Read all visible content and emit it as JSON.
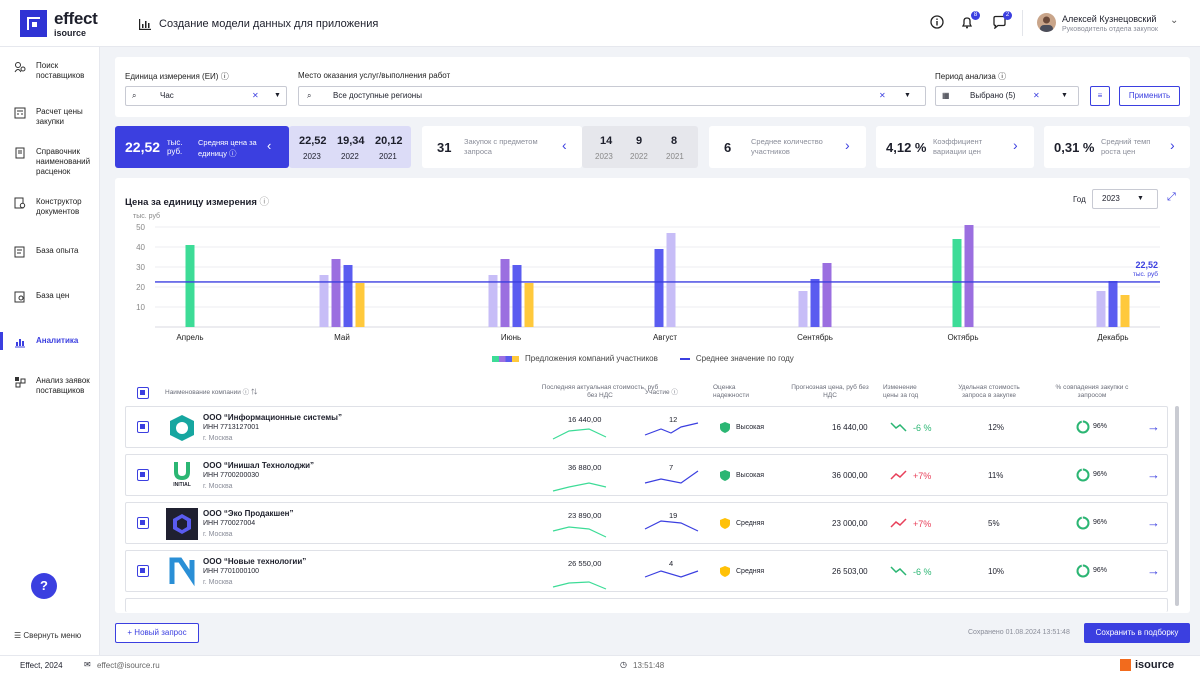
{
  "header": {
    "brand": "effect",
    "brand_sub": "isource",
    "title": "Создание модели данных для приложения",
    "notif_count": "8",
    "msg_count": "2",
    "user_name": "Алексей Кузнецовский",
    "user_role": "Руководитель отдела закупок"
  },
  "sidebar": {
    "items": [
      {
        "label": "Поиск поставщиков",
        "icon": "supplier-search-icon"
      },
      {
        "label": "Расчет цены закупки",
        "icon": "calculator-icon"
      },
      {
        "label": "Справочник наименований расценок",
        "icon": "book-icon"
      },
      {
        "label": "Конструктор документов",
        "icon": "document-builder-icon"
      },
      {
        "label": "База опыта",
        "icon": "experience-base-icon"
      },
      {
        "label": "База цен",
        "icon": "price-base-icon"
      },
      {
        "label": "Аналитика",
        "icon": "analytics-icon",
        "active": true
      },
      {
        "label": "Анализ заявок поставщиков",
        "icon": "applications-icon"
      }
    ],
    "collapse": "Свернуть меню"
  },
  "filters": {
    "unit_label": "Единица измерения (ЕИ)",
    "unit_value": "Час",
    "place_label": "Место оказания услуг/выполнения работ",
    "place_value": "Все доступные регионы",
    "period_label": "Период анализа",
    "period_value": "Выбрано (5)",
    "apply": "Применить"
  },
  "stats": {
    "price_value": "22,52",
    "price_unit": "тыс. руб.",
    "price_label": "Средняя цена за единицу",
    "years": [
      {
        "v": "22,52",
        "y": "2023"
      },
      {
        "v": "19,34",
        "y": "2022"
      },
      {
        "v": "20,12",
        "y": "2021"
      }
    ],
    "purchases_value": "31",
    "purchases_label": "Закупок с предметом запроса",
    "purchases_years": [
      {
        "v": "14",
        "y": "2023"
      },
      {
        "v": "9",
        "y": "2022"
      },
      {
        "v": "8",
        "y": "2021"
      }
    ],
    "participants_value": "6",
    "participants_label": "Среднее количество участников",
    "variation_value": "4,12 %",
    "variation_label": "Коэффициент вариации цен",
    "growth_value": "0,31 %",
    "growth_label": "Средний темп роста цен"
  },
  "chart_panel": {
    "title": "Цена за единицу измерения",
    "year_label": "Год",
    "year_value": "2023",
    "y_unit": "тыс. руб",
    "avg_value": "22,52",
    "avg_unit": "тыс. руб",
    "legend_offers": "Предложения компаний участников",
    "legend_avg": "Среднее значение по году"
  },
  "chart_data": {
    "type": "bar",
    "categories": [
      "Апрель",
      "Май",
      "Июнь",
      "Август",
      "Сентябрь",
      "Октябрь",
      "Декабрь"
    ],
    "y_ticks": [
      "50",
      "40",
      "30",
      "20",
      "10"
    ],
    "ylim": [
      0,
      55
    ],
    "average": 22.52,
    "bar_values": [
      [
        41
      ],
      [
        26,
        34,
        31,
        22
      ],
      [
        26,
        34,
        31,
        22
      ],
      [
        39,
        47
      ],
      [
        18,
        24,
        32
      ],
      [
        44,
        51
      ],
      [
        18,
        23,
        16
      ]
    ],
    "bar_colors": [
      [
        "#3ddc97"
      ],
      [
        "#c7bdf7",
        "#9b6fe0",
        "#5a5cf0",
        "#ffc93c"
      ],
      [
        "#c7bdf7",
        "#9b6fe0",
        "#5a5cf0",
        "#ffc93c"
      ],
      [
        "#5a5cf0",
        "#c7bdf7"
      ],
      [
        "#c7bdf7",
        "#5a5cf0",
        "#9b6fe0"
      ],
      [
        "#3ddc97",
        "#9b6fe0"
      ],
      [
        "#c7bdf7",
        "#5a5cf0",
        "#ffc93c"
      ]
    ]
  },
  "table": {
    "headers": {
      "name": "Наименование компании",
      "last_price": "Последняя актуальная стоимость, руб без НДС",
      "participation": "Участие",
      "reliability": "Оценка надежности",
      "forecast": "Прогнозная цена, руб без НДС",
      "change": "Изменение цены за год",
      "share": "Удельная стоимость запроса в закупке",
      "match": "% совпадения закупки с запросом"
    },
    "rows": [
      {
        "name": "ООО “Информационные системы”",
        "inn": "ИНН 7713127001",
        "city": "г. Москва",
        "last_price": "16 440,00",
        "participation": "12",
        "reliability": "Высокая",
        "rel_color": "#2bb673",
        "forecast": "16 440,00",
        "change": "-6 %",
        "change_color": "#2bb673",
        "share": "12%",
        "match": "96%",
        "logo": "hexagon-logo"
      },
      {
        "name": "ООО “Инишал Технолоджи”",
        "inn": "ИНН 7700200030",
        "city": "г. Москва",
        "last_price": "36 880,00",
        "participation": "7",
        "reliability": "Высокая",
        "rel_color": "#2bb673",
        "forecast": "36 000,00",
        "change": "+7%",
        "change_color": "#e8405a",
        "share": "11%",
        "match": "96%",
        "logo": "initial-logo",
        "logo_text": "INITIAL"
      },
      {
        "name": "ООО “Эко Продакшен”",
        "inn": "ИНН 770027004",
        "city": "г. Москва",
        "last_price": "23 890,00",
        "participation": "19",
        "reliability": "Средняя",
        "rel_color": "#ffc107",
        "forecast": "23 000,00",
        "change": "+7%",
        "change_color": "#e8405a",
        "share": "5%",
        "match": "96%",
        "logo": "octagon-logo"
      },
      {
        "name": "ООО “Новые технологии”",
        "inn": "ИНН 7701000100",
        "city": "г. Москва",
        "last_price": "26 550,00",
        "participation": "4",
        "reliability": "Средняя",
        "rel_color": "#ffc107",
        "forecast": "26 503,00",
        "change": "-6 %",
        "change_color": "#2bb673",
        "share": "10%",
        "match": "96%",
        "logo": "n-letter-logo"
      }
    ]
  },
  "actions": {
    "new_request": "+ Новый запрос",
    "saved": "Сохранено 01.08.2024 13:51:48",
    "save": "Сохранить в подборку"
  },
  "footer": {
    "copyright": "Effect, 2024",
    "email": "effect@isource.ru",
    "time": "13:51:48",
    "brand": "isource"
  }
}
